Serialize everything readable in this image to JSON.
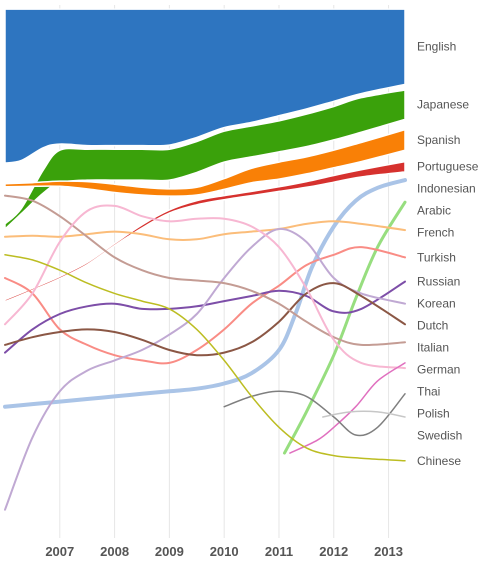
{
  "chart_data": {
    "type": "area",
    "x": [
      "2007",
      "2008",
      "2009",
      "2010",
      "2011",
      "2012",
      "2013"
    ],
    "ylim": [
      0,
      100
    ],
    "grid": true,
    "series": [
      {
        "name": "English",
        "color": "#2e75c0",
        "kind": "band",
        "x": [
          2006,
          2006.3,
          2006.7,
          2007,
          2007.5,
          2008,
          2008.5,
          2009,
          2009.5,
          2010,
          2010.5,
          2011,
          2011.5,
          2012,
          2012.5,
          2013.3
        ],
        "top": [
          99.2,
          99.2,
          99.2,
          99.2,
          99.2,
          99.2,
          99.2,
          99.2,
          99.2,
          99.2,
          99.2,
          99.2,
          99.2,
          99.2,
          99.2,
          99.2
        ],
        "bottom": [
          69.3,
          69.8,
          72.3,
          73.0,
          72.7,
          72.7,
          72.7,
          72.8,
          74.3,
          76.2,
          77.2,
          78.5,
          79.8,
          81.3,
          82.8,
          84.6
        ]
      },
      {
        "name": "Japanese",
        "color": "#3aa10b",
        "kind": "band",
        "x": [
          2006,
          2006.3,
          2006.7,
          2007,
          2007.5,
          2008,
          2008.5,
          2009,
          2009.5,
          2010,
          2010.5,
          2011,
          2011.5,
          2012,
          2012.5,
          2013.3
        ],
        "top": [
          57.5,
          60.5,
          68.0,
          71.8,
          72.0,
          72.0,
          72.0,
          72.0,
          73.5,
          75.5,
          76.5,
          77.5,
          78.8,
          80.3,
          82.0,
          83.5
        ],
        "bottom": [
          56.5,
          59.5,
          63.5,
          65.5,
          66.0,
          66.0,
          66.0,
          66.0,
          67.5,
          69.5,
          70.5,
          71.5,
          72.5,
          73.8,
          75.3,
          77.8
        ]
      },
      {
        "name": "Spanish",
        "color": "#f98006",
        "kind": "band",
        "x": [
          2006,
          2006.5,
          2007,
          2007.5,
          2008,
          2008.5,
          2009,
          2009.5,
          2010,
          2010.5,
          2011,
          2011.5,
          2012,
          2012.5,
          2013.3
        ],
        "top": [
          65.3,
          65.5,
          65.8,
          65.7,
          65.2,
          64.6,
          64.3,
          64.6,
          66.3,
          68.3,
          69.5,
          70.5,
          71.8,
          73.3,
          75.8
        ],
        "bottom": [
          64.7,
          64.8,
          64.8,
          64.3,
          63.6,
          63.1,
          62.9,
          63.1,
          64.2,
          65.5,
          66.2,
          67.2,
          68.4,
          69.6,
          71.8
        ]
      },
      {
        "name": "Portuguese",
        "color": "#d6312e",
        "kind": "band",
        "x": [
          2006,
          2006.5,
          2007,
          2007.5,
          2008,
          2008.5,
          2009,
          2009.5,
          2010,
          2010.5,
          2011,
          2011.5,
          2012,
          2012.5,
          2013.3
        ],
        "top": [
          42.8,
          45.0,
          47.3,
          50.0,
          53.7,
          57.3,
          60.2,
          62.0,
          63.0,
          63.8,
          64.7,
          65.7,
          66.9,
          68.0,
          69.6
        ],
        "bottom": [
          42.4,
          44.6,
          46.9,
          49.6,
          53.3,
          56.7,
          59.6,
          61.2,
          62.2,
          63.0,
          63.8,
          64.6,
          65.6,
          66.6,
          67.6
        ]
      },
      {
        "name": "Indonesian",
        "color": "#aac4e7",
        "kind": "line",
        "width": 4,
        "x": [
          2006,
          2006.5,
          2007,
          2007.5,
          2008,
          2008.5,
          2009,
          2009.5,
          2010,
          2010.5,
          2011,
          2011.3,
          2011.6,
          2012,
          2012.4,
          2012.8,
          2013.3
        ],
        "values": [
          22.0,
          22.5,
          23.0,
          23.5,
          24.0,
          24.5,
          25.0,
          25.5,
          26.5,
          28.5,
          33.0,
          40.0,
          49.0,
          57.0,
          62.0,
          64.5,
          66.0
        ]
      },
      {
        "name": "Arabic",
        "color": "#97de7f",
        "kind": "line",
        "width": 3,
        "x": [
          2011.1,
          2011.5,
          2012,
          2012.4,
          2012.8,
          2013.3
        ],
        "values": [
          13.0,
          21.0,
          32.0,
          43.0,
          53.0,
          61.7
        ]
      },
      {
        "name": "French",
        "color": "#fbbd7a",
        "kind": "line",
        "width": 2,
        "x": [
          2006,
          2006.5,
          2007,
          2007.5,
          2008,
          2008.5,
          2009,
          2009.5,
          2010,
          2010.5,
          2011,
          2011.5,
          2012,
          2012.5,
          2013.3
        ],
        "values": [
          55.0,
          55.2,
          55.0,
          55.5,
          56.0,
          55.5,
          54.5,
          54.5,
          55.5,
          56.0,
          56.5,
          57.5,
          58.0,
          57.5,
          56.3
        ]
      },
      {
        "name": "Turkish",
        "color": "#f98c85",
        "kind": "line",
        "width": 2,
        "x": [
          2006,
          2006.5,
          2007,
          2007.5,
          2008,
          2008.5,
          2009,
          2009.5,
          2010,
          2010.5,
          2011,
          2011.5,
          2012,
          2012.5,
          2013.3
        ],
        "values": [
          47.0,
          44.0,
          37.0,
          34.0,
          32.0,
          31.0,
          30.5,
          33.0,
          37.0,
          42.0,
          45.5,
          49.5,
          51.5,
          53.0,
          51.0
        ]
      },
      {
        "name": "Russian",
        "color": "#7d4ea8",
        "kind": "line",
        "width": 2,
        "x": [
          2006,
          2006.5,
          2007,
          2007.5,
          2008,
          2008.5,
          2009,
          2009.5,
          2010,
          2010.5,
          2011,
          2011.5,
          2012,
          2012.5,
          2013.3
        ],
        "values": [
          32.5,
          37.0,
          40.0,
          41.5,
          42.0,
          41.0,
          41.0,
          41.5,
          42.5,
          43.5,
          44.5,
          43.5,
          40.5,
          41.0,
          46.3
        ]
      },
      {
        "name": "Korean",
        "color": "#c0a9d3",
        "kind": "line",
        "width": 2,
        "x": [
          2006,
          2006.5,
          2007,
          2007.5,
          2008,
          2008.5,
          2009,
          2009.5,
          2010,
          2010.5,
          2011,
          2011.5,
          2012,
          2012.5,
          2013.3
        ],
        "values": [
          2.0,
          16.0,
          25.0,
          29.0,
          31.0,
          33.0,
          36.0,
          40.0,
          47.0,
          53.0,
          56.5,
          54.0,
          47.0,
          44.0,
          42.0
        ]
      },
      {
        "name": "Dutch",
        "color": "#8b5745",
        "kind": "line",
        "width": 2,
        "x": [
          2006,
          2006.5,
          2007,
          2007.5,
          2008,
          2008.5,
          2009,
          2009.5,
          2010,
          2010.5,
          2011,
          2011.5,
          2012,
          2012.5,
          2013.3
        ],
        "values": [
          34.0,
          35.5,
          36.5,
          37.0,
          36.5,
          35.0,
          33.0,
          32.0,
          32.5,
          34.5,
          38.5,
          44.0,
          46.0,
          43.5,
          38.0
        ]
      },
      {
        "name": "Italian",
        "color": "#c49c94",
        "kind": "line",
        "width": 2,
        "x": [
          2006,
          2006.5,
          2007,
          2007.5,
          2008,
          2008.5,
          2009,
          2009.5,
          2010,
          2010.5,
          2011,
          2011.5,
          2012,
          2012.5,
          2013.3
        ],
        "values": [
          63.0,
          62.0,
          59.0,
          55.0,
          51.0,
          48.5,
          47.0,
          46.5,
          46.0,
          44.5,
          42.0,
          38.5,
          35.5,
          34.0,
          34.5
        ]
      },
      {
        "name": "Thai",
        "color": "#f7b7d2",
        "kind": "line",
        "width": 2,
        "x": [
          2006,
          2006.5,
          2007,
          2007.5,
          2008,
          2008.5,
          2009,
          2009.5,
          2010,
          2010.5,
          2011,
          2011.5,
          2012,
          2012.5,
          2013.3
        ],
        "values": [
          38.0,
          44.0,
          54.0,
          60.0,
          61.0,
          59.0,
          58.0,
          58.5,
          58.5,
          57.0,
          53.0,
          45.0,
          35.0,
          30.5,
          29.5
        ]
      },
      {
        "name": "German",
        "color": "#e070bf",
        "kind": "line",
        "width": 1.5,
        "x": [
          2011.2,
          2011.7,
          2012,
          2012.4,
          2012.8,
          2013.3
        ],
        "values": [
          13.0,
          15.5,
          18.0,
          22.0,
          27.0,
          30.5
        ]
      },
      {
        "name": "Polish",
        "color": "#7f7f7f",
        "kind": "line",
        "width": 1.5,
        "x": [
          2010.0,
          2010.5,
          2011,
          2011.5,
          2012,
          2012.4,
          2012.8,
          2013.3
        ],
        "values": [
          22.0,
          24.0,
          25.0,
          24.0,
          20.0,
          16.5,
          18.0,
          24.5
        ]
      },
      {
        "name": "Swedish",
        "color": "#c7c7c7",
        "kind": "line",
        "width": 1.5,
        "x": [
          2011.8,
          2012.3,
          2012.8,
          2013.3
        ],
        "values": [
          20.0,
          21.0,
          21.0,
          20.0
        ]
      },
      {
        "name": "Chinese",
        "color": "#bcbd22",
        "kind": "line",
        "width": 1.5,
        "x": [
          2006,
          2006.5,
          2007,
          2007.5,
          2008,
          2008.5,
          2009,
          2009.5,
          2010,
          2010.5,
          2011,
          2011.5,
          2012,
          2012.5,
          2013.3
        ],
        "values": [
          51.5,
          50.5,
          48.5,
          46.0,
          44.0,
          42.5,
          41.0,
          37.0,
          31.0,
          24.0,
          18.0,
          14.0,
          12.5,
          12.0,
          11.5
        ]
      }
    ]
  }
}
